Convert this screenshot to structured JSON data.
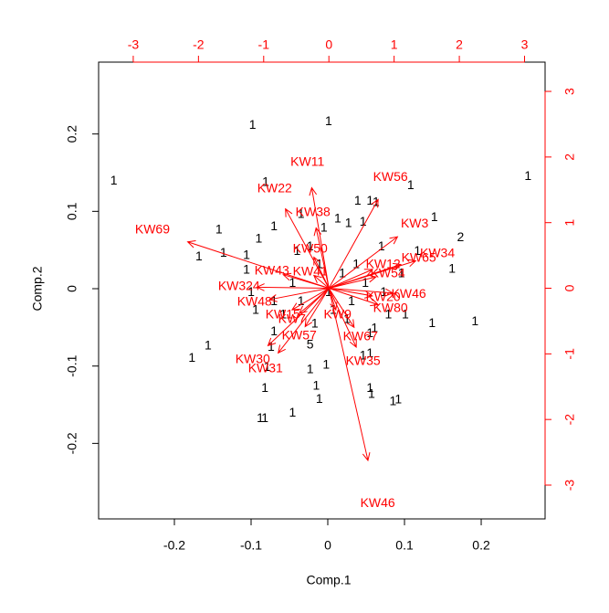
{
  "chart_data": {
    "type": "biplot",
    "xlabel": "Comp.1",
    "ylabel": "Comp.2",
    "xlim": [
      -0.2988,
      0.2833
    ],
    "ylim": [
      -0.2976,
      0.2929
    ],
    "xticks": [
      -0.2,
      -0.1,
      0,
      0.1,
      0.2
    ],
    "yticks": [
      -0.2,
      -0.1,
      0,
      0.1,
      0.2
    ],
    "x2lim": [
      -3.531,
      3.315
    ],
    "y2lim": [
      -3.515,
      3.446
    ],
    "x2ticks": [
      -3,
      -2,
      -1,
      0,
      1,
      2,
      3
    ],
    "y2ticks": [
      -3,
      -2,
      -1,
      0,
      1,
      2,
      3
    ],
    "points": {
      "color": "#000000",
      "x": [
        -0.098,
        0.001,
        -0.279,
        0.261,
        -0.081,
        0.108,
        0.039,
        0.055,
        0.063,
        -0.142,
        -0.168,
        -0.136,
        -0.09,
        0.139,
        0.173,
        0.162,
        0.192,
        0.136,
        0.101,
        -0.177,
        -0.156,
        -0.079,
        -0.082,
        -0.088,
        -0.082,
        -0.046,
        -0.015,
        -0.011,
        -0.023,
        -0.002,
        0.055,
        0.057,
        0.085,
        0.092,
        0.055,
        0.046,
        -0.023,
        -0.07,
        -0.074,
        -0.005,
        0.013,
        0.027,
        0.046,
        -0.035,
        -0.07,
        -0.04,
        -0.023,
        0.07,
        0.096,
        -0.106,
        -0.1,
        -0.094,
        -0.058,
        -0.07,
        0.061,
        0.079,
        0.055,
        0.025,
        -0.017,
        0.001,
        0.019,
        0.037,
        -0.011,
        -0.046,
        0.049,
        -0.035,
        0.007,
        0.031,
        0.073,
        0.117,
        -0.106
      ],
      "y": [
        0.211,
        0.216,
        0.139,
        0.145,
        0.137,
        0.133,
        0.113,
        0.113,
        0.111,
        0.076,
        0.041,
        0.046,
        0.064,
        0.092,
        0.066,
        0.025,
        -0.043,
        -0.045,
        -0.034,
        -0.09,
        -0.074,
        -0.102,
        -0.129,
        -0.168,
        -0.168,
        -0.161,
        -0.126,
        -0.143,
        -0.105,
        -0.099,
        -0.129,
        -0.137,
        -0.146,
        -0.144,
        -0.084,
        -0.087,
        -0.073,
        -0.056,
        -0.076,
        0.078,
        0.09,
        0.084,
        0.086,
        0.096,
        0.08,
        0.048,
        0.054,
        0.054,
        0.019,
        0.024,
        -0.005,
        -0.028,
        -0.034,
        -0.017,
        -0.052,
        -0.034,
        -0.058,
        -0.04,
        -0.046,
        -0.005,
        0.019,
        0.031,
        0.031,
        0.007,
        0.007,
        -0.017,
        -0.028,
        -0.017,
        -0.005,
        0.048,
        0.043
      ],
      "labels": [
        "1",
        "1",
        "1",
        "1",
        "1",
        "1",
        "1",
        "1",
        "1",
        "1",
        "1",
        "1",
        "1",
        "1",
        "2",
        "1",
        "1",
        "1",
        "1",
        "1",
        "1",
        "1",
        "1",
        "1",
        "1",
        "1",
        "1",
        "1",
        "1",
        "1",
        "1",
        "1",
        "1",
        "1",
        "1",
        "1",
        "5",
        "1",
        "1",
        "1",
        "1",
        "1",
        "1",
        "1",
        "1",
        "1",
        "1",
        "1",
        "1",
        "1",
        "1",
        "1",
        "1",
        "1",
        "1",
        "1",
        "1",
        "1",
        "1",
        "1",
        "1",
        "1",
        "1",
        "1",
        "1",
        "1",
        "1",
        "1",
        "1",
        "1",
        "1"
      ]
    },
    "arrows": {
      "color": "#ff0000",
      "names": [
        "KW11",
        "KW56",
        "KW22",
        "KW69",
        "KW38",
        "KW3",
        "KW34",
        "KW65",
        "KW324",
        "KW48",
        "KW80",
        "KW46",
        "KW46",
        "KW30",
        "KW31",
        "KW35",
        "KW67",
        "KW57",
        "KW50",
        "KW41",
        "KW43",
        "KW54",
        "KW12",
        "KW20",
        "KW15",
        "KW7",
        "KW9"
      ],
      "x": [
        -0.329,
        0.944,
        -0.832,
        -2.706,
        -0.245,
        1.315,
        1.664,
        1.378,
        -1.378,
        -1.14,
        0.944,
        1.224,
        0.748,
        -1.168,
        -0.972,
        0.524,
        0.483,
        -0.455,
        -0.287,
        -0.287,
        -0.874,
        0.902,
        0.832,
        0.832,
        -0.706,
        -0.566,
        0.133
      ],
      "y": [
        1.914,
        1.691,
        1.511,
        0.884,
        1.149,
        0.981,
        0.522,
        0.453,
        0.021,
        -0.216,
        -0.313,
        -0.091,
        -3.279,
        -1.093,
        -1.232,
        -1.121,
        -0.745,
        -0.731,
        0.592,
        0.244,
        0.258,
        0.216,
        0.355,
        -0.146,
        -0.411,
        -0.48,
        -0.411
      ]
    }
  }
}
